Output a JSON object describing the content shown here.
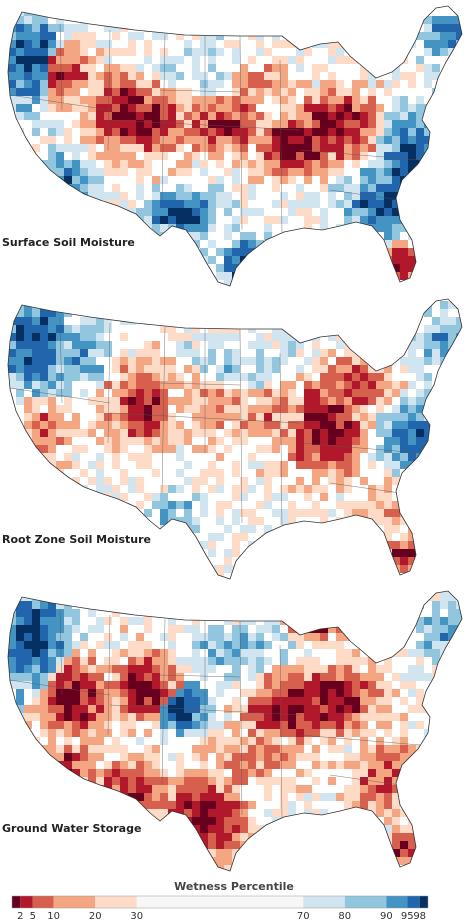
{
  "panels": [
    {
      "label": "Surface Soil Moisture",
      "pattern": "surface"
    },
    {
      "label": "Root Zone Soil Moisture",
      "pattern": "root"
    },
    {
      "label": "Ground Water Storage",
      "pattern": "ground"
    }
  ],
  "legend": {
    "title": "Wetness Percentile",
    "ticks": [
      "2",
      "5",
      "10",
      "20",
      "30",
      "70",
      "80",
      "90",
      "95",
      "98"
    ],
    "breaks": [
      0,
      2,
      5,
      10,
      20,
      30,
      70,
      80,
      90,
      95,
      98,
      100
    ],
    "colors": [
      "#67001f",
      "#b2182b",
      "#d6604d",
      "#f4a582",
      "#fddbc7",
      "#f7f7f7",
      "#d1e5f0",
      "#92c5de",
      "#4393c3",
      "#2166ac",
      "#053061"
    ]
  }
}
